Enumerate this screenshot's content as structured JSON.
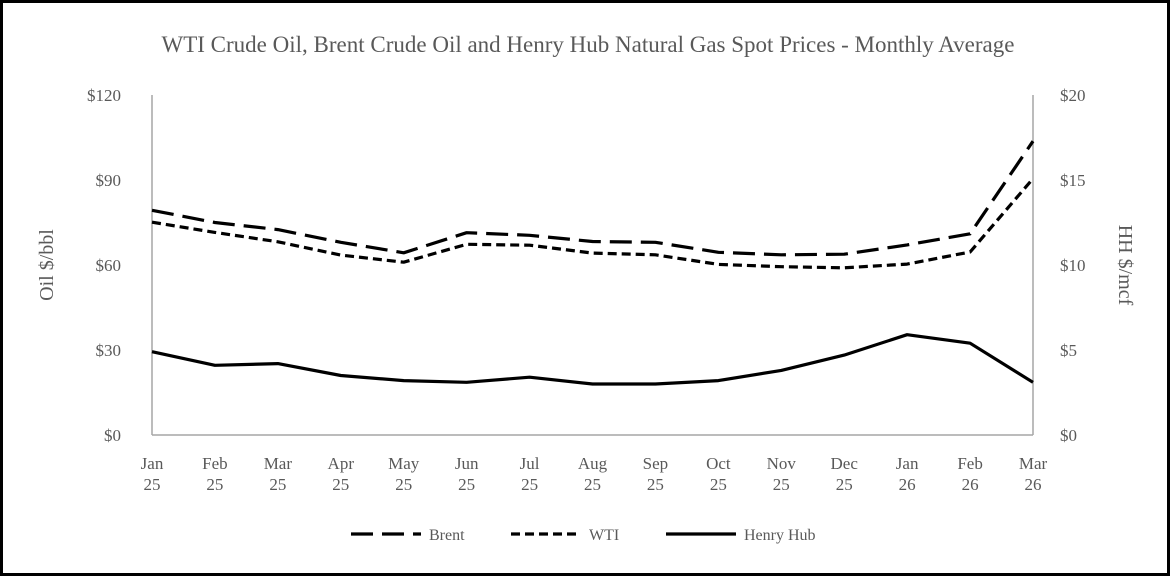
{
  "chart_data": {
    "type": "line",
    "title": "WTI Crude Oil, Brent Crude Oil and Henry Hub Natural Gas Spot Prices - Monthly Average",
    "categories": [
      [
        "Jan",
        "25"
      ],
      [
        "Feb",
        "25"
      ],
      [
        "Mar",
        "25"
      ],
      [
        "Apr",
        "25"
      ],
      [
        "May",
        "25"
      ],
      [
        "Jun",
        "25"
      ],
      [
        "Jul",
        "25"
      ],
      [
        "Aug",
        "25"
      ],
      [
        "Sep",
        "25"
      ],
      [
        "Oct",
        "25"
      ],
      [
        "Nov",
        "25"
      ],
      [
        "Dec",
        "25"
      ],
      [
        "Jan",
        "26"
      ],
      [
        "Feb",
        "26"
      ],
      [
        "Mar",
        "26"
      ]
    ],
    "ylabel_left": "Oil $/bbl",
    "ylabel_right": "HH $/mcf",
    "ylim_left": [
      0,
      120
    ],
    "ylim_right": [
      0,
      20
    ],
    "yticks_left": [
      "$0",
      "$30",
      "$60",
      "$90",
      "$120"
    ],
    "yticks_right": [
      "$0",
      "$5",
      "$10",
      "$15",
      "$20"
    ],
    "grid": false,
    "legend_position": "bottom",
    "series": [
      {
        "name": "Brent",
        "axis": "left",
        "style": "long-dash",
        "color": "#000000",
        "values": [
          79.3,
          75.0,
          72.5,
          68.0,
          64.3,
          71.4,
          70.5,
          68.3,
          68.0,
          64.5,
          63.6,
          63.8,
          67.1,
          71.0,
          103.7
        ]
      },
      {
        "name": "WTI",
        "axis": "left",
        "style": "short-dash",
        "color": "#000000",
        "values": [
          75.1,
          71.5,
          68.2,
          63.5,
          61.0,
          67.3,
          67.0,
          64.2,
          63.6,
          60.2,
          59.4,
          59.0,
          60.3,
          64.6,
          90.5
        ]
      },
      {
        "name": "Henry Hub",
        "axis": "right",
        "style": "solid",
        "color": "#000000",
        "values": [
          4.9,
          4.1,
          4.2,
          3.5,
          3.2,
          3.1,
          3.4,
          3.0,
          3.0,
          3.2,
          3.8,
          4.7,
          5.9,
          5.4,
          3.1
        ]
      }
    ]
  }
}
